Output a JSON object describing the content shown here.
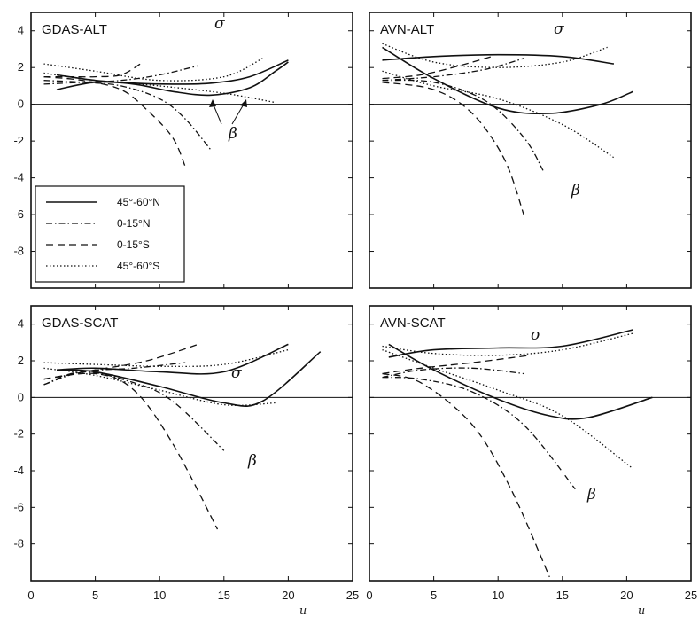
{
  "chart_data": [
    {
      "type": "line",
      "title": "GDAS-ALT",
      "xlim": [
        0,
        25
      ],
      "ylim": [
        -10,
        5
      ],
      "xlabel": "",
      "ylabel": "",
      "annotations": [
        "σ",
        "β"
      ],
      "series": [
        {
          "name": "45°-60°N",
          "style": "solid",
          "x": [
            2,
            5,
            8,
            11,
            14,
            17,
            20
          ],
          "y": [
            1.6,
            1.3,
            1.15,
            1.1,
            1.15,
            1.5,
            2.4
          ]
        },
        {
          "name": "45°-60°N",
          "style": "solid",
          "x": [
            2,
            5,
            8,
            11,
            14,
            17,
            19,
            20
          ],
          "y": [
            0.8,
            1.2,
            1.1,
            0.7,
            0.5,
            0.9,
            1.8,
            2.3
          ]
        },
        {
          "name": "0-15°N",
          "style": "dashdot",
          "x": [
            1,
            4,
            7,
            10,
            13
          ],
          "y": [
            1.1,
            1.2,
            1.3,
            1.6,
            2.1
          ]
        },
        {
          "name": "0-15°N",
          "style": "dashdot",
          "x": [
            1,
            4,
            7,
            10,
            12,
            14
          ],
          "y": [
            1.3,
            1.2,
            1.0,
            0.3,
            -0.8,
            -2.5
          ]
        },
        {
          "name": "0-15°S",
          "style": "dashed",
          "x": [
            1,
            3,
            5,
            7,
            8.5
          ],
          "y": [
            1.5,
            1.5,
            1.5,
            1.6,
            2.2
          ]
        },
        {
          "name": "0-15°S",
          "style": "dashed",
          "x": [
            1,
            4,
            7,
            9,
            11,
            12
          ],
          "y": [
            1.5,
            1.3,
            0.8,
            -0.3,
            -1.8,
            -3.4
          ]
        },
        {
          "name": "45°-60°S",
          "style": "dotted",
          "x": [
            1,
            5,
            10,
            15,
            18
          ],
          "y": [
            2.2,
            1.8,
            1.3,
            1.5,
            2.5
          ]
        },
        {
          "name": "45°-60°S",
          "style": "dotted",
          "x": [
            1,
            5,
            10,
            15,
            19
          ],
          "y": [
            1.7,
            1.3,
            1.0,
            0.6,
            0.1
          ]
        }
      ]
    },
    {
      "type": "line",
      "title": "AVN-ALT",
      "xlim": [
        0,
        25
      ],
      "ylim": [
        -10,
        5
      ],
      "xlabel": "",
      "ylabel": "",
      "annotations": [
        "σ",
        "β"
      ],
      "series": [
        {
          "name": "45°-60°N",
          "style": "solid",
          "x": [
            1,
            5,
            10,
            15,
            19
          ],
          "y": [
            2.4,
            2.6,
            2.7,
            2.6,
            2.2
          ]
        },
        {
          "name": "45°-60°N",
          "style": "solid",
          "x": [
            1,
            5,
            10,
            14,
            18,
            20.5
          ],
          "y": [
            3.1,
            1.4,
            -0.2,
            -0.5,
            0,
            0.7
          ]
        },
        {
          "name": "0-15°N",
          "style": "dashdot",
          "x": [
            1,
            5,
            9,
            12
          ],
          "y": [
            1.3,
            1.5,
            1.9,
            2.5
          ]
        },
        {
          "name": "0-15°N",
          "style": "dashdot",
          "x": [
            1,
            5,
            9,
            12,
            13.5
          ],
          "y": [
            1.3,
            1.2,
            0.2,
            -1.8,
            -3.6
          ]
        },
        {
          "name": "0-15°S",
          "style": "dashed",
          "x": [
            1,
            4,
            7,
            9.5
          ],
          "y": [
            1.4,
            1.6,
            2.1,
            2.6
          ]
        },
        {
          "name": "0-15°S",
          "style": "dashed",
          "x": [
            1,
            5,
            8,
            10.5,
            12
          ],
          "y": [
            1.2,
            0.8,
            -0.5,
            -3.0,
            -6.0
          ]
        },
        {
          "name": "45°-60°S",
          "style": "dotted",
          "x": [
            1,
            5,
            10,
            15,
            18.5
          ],
          "y": [
            3.3,
            2.3,
            2.0,
            2.3,
            3.1
          ]
        },
        {
          "name": "45°-60°S",
          "style": "dotted",
          "x": [
            1,
            5,
            10,
            15,
            19
          ],
          "y": [
            1.8,
            1.0,
            0.3,
            -1.1,
            -2.9
          ]
        }
      ]
    },
    {
      "type": "line",
      "title": "GDAS-SCAT",
      "xlim": [
        0,
        25
      ],
      "ylim": [
        -10,
        5
      ],
      "xlabel": "",
      "ylabel": "",
      "annotations": [
        "σ",
        "β"
      ],
      "series": [
        {
          "name": "45°-60°N",
          "style": "solid",
          "x": [
            2,
            5,
            10,
            15,
            20
          ],
          "y": [
            1.5,
            1.6,
            1.4,
            1.4,
            2.9
          ]
        },
        {
          "name": "45°-60°N",
          "style": "solid",
          "x": [
            2,
            5,
            10,
            15,
            18,
            22.5
          ],
          "y": [
            1.5,
            1.4,
            0.6,
            -0.3,
            -0.2,
            2.5
          ]
        },
        {
          "name": "0-15°N",
          "style": "dashdot",
          "x": [
            1,
            4,
            8,
            12
          ],
          "y": [
            0.7,
            1.4,
            1.6,
            1.9
          ]
        },
        {
          "name": "0-15°N",
          "style": "dashdot",
          "x": [
            1,
            4,
            8,
            11,
            15
          ],
          "y": [
            0.7,
            1.4,
            0.8,
            -0.2,
            -2.9
          ]
        },
        {
          "name": "0-15°S",
          "style": "dashed",
          "x": [
            1,
            5,
            9,
            13
          ],
          "y": [
            1.0,
            1.5,
            2.0,
            2.9
          ]
        },
        {
          "name": "0-15°S",
          "style": "dashed",
          "x": [
            1,
            5,
            8,
            11,
            14.5
          ],
          "y": [
            1.0,
            1.3,
            0.4,
            -2.5,
            -7.2
          ]
        },
        {
          "name": "45°-60°S",
          "style": "dotted",
          "x": [
            1,
            5,
            10,
            15,
            20
          ],
          "y": [
            1.9,
            1.8,
            1.7,
            1.8,
            2.6
          ]
        },
        {
          "name": "45°-60°S",
          "style": "dotted",
          "x": [
            1,
            5,
            10,
            15,
            19
          ],
          "y": [
            1.6,
            1.2,
            0.4,
            -0.4,
            -0.3
          ]
        }
      ]
    },
    {
      "type": "line",
      "title": "AVN-SCAT",
      "xlim": [
        0,
        25
      ],
      "ylim": [
        -10,
        5
      ],
      "xlabel": "",
      "ylabel": "",
      "annotations": [
        "σ",
        "β"
      ],
      "series": [
        {
          "name": "45°-60°N",
          "style": "solid",
          "x": [
            1.5,
            5,
            10,
            15,
            20.5
          ],
          "y": [
            2.2,
            2.6,
            2.7,
            2.8,
            3.7
          ]
        },
        {
          "name": "45°-60°N",
          "style": "solid",
          "x": [
            1.5,
            5,
            10,
            14,
            17,
            22
          ],
          "y": [
            2.9,
            1.5,
            -0.1,
            -1.0,
            -1.1,
            0
          ]
        },
        {
          "name": "0-15°N",
          "style": "dashdot",
          "x": [
            1,
            4,
            8,
            12
          ],
          "y": [
            1.1,
            1.5,
            1.6,
            1.3
          ]
        },
        {
          "name": "0-15°N",
          "style": "dashdot",
          "x": [
            1,
            4,
            8,
            12,
            16
          ],
          "y": [
            1.1,
            1.0,
            0.3,
            -1.5,
            -5.0
          ]
        },
        {
          "name": "0-15°S",
          "style": "dashed",
          "x": [
            1,
            4,
            8,
            12.5
          ],
          "y": [
            1.3,
            1.6,
            1.9,
            2.3
          ]
        },
        {
          "name": "0-15°S",
          "style": "dashed",
          "x": [
            1,
            4,
            8,
            11,
            14
          ],
          "y": [
            1.3,
            0.8,
            -1.5,
            -5.0,
            -9.8
          ]
        },
        {
          "name": "45°-60°S",
          "style": "dotted",
          "x": [
            1,
            5,
            10,
            15,
            20.5
          ],
          "y": [
            2.8,
            2.4,
            2.3,
            2.6,
            3.5
          ]
        },
        {
          "name": "45°-60°S",
          "style": "dotted",
          "x": [
            1,
            5,
            10,
            15,
            20.5
          ],
          "y": [
            2.6,
            1.6,
            0.4,
            -1.0,
            -3.9
          ]
        }
      ]
    }
  ],
  "legend": {
    "placement": "left, inside GDAS-ALT panel",
    "entries": [
      {
        "label": "45°-60°N",
        "style": "solid"
      },
      {
        "label": "0-15°N",
        "style": "dashdot"
      },
      {
        "label": "0-15°S",
        "style": "dashed"
      },
      {
        "label": "45°-60°S",
        "style": "dotted"
      }
    ]
  },
  "x_ticks": [
    "0",
    "5",
    "10",
    "15",
    "20",
    "25"
  ],
  "y_ticks": [
    "4",
    "2",
    "0",
    "-2",
    "-4",
    "-6",
    "-8"
  ],
  "x_axis_letter": "u",
  "line_color": "#111111",
  "frame_color": "#111111"
}
